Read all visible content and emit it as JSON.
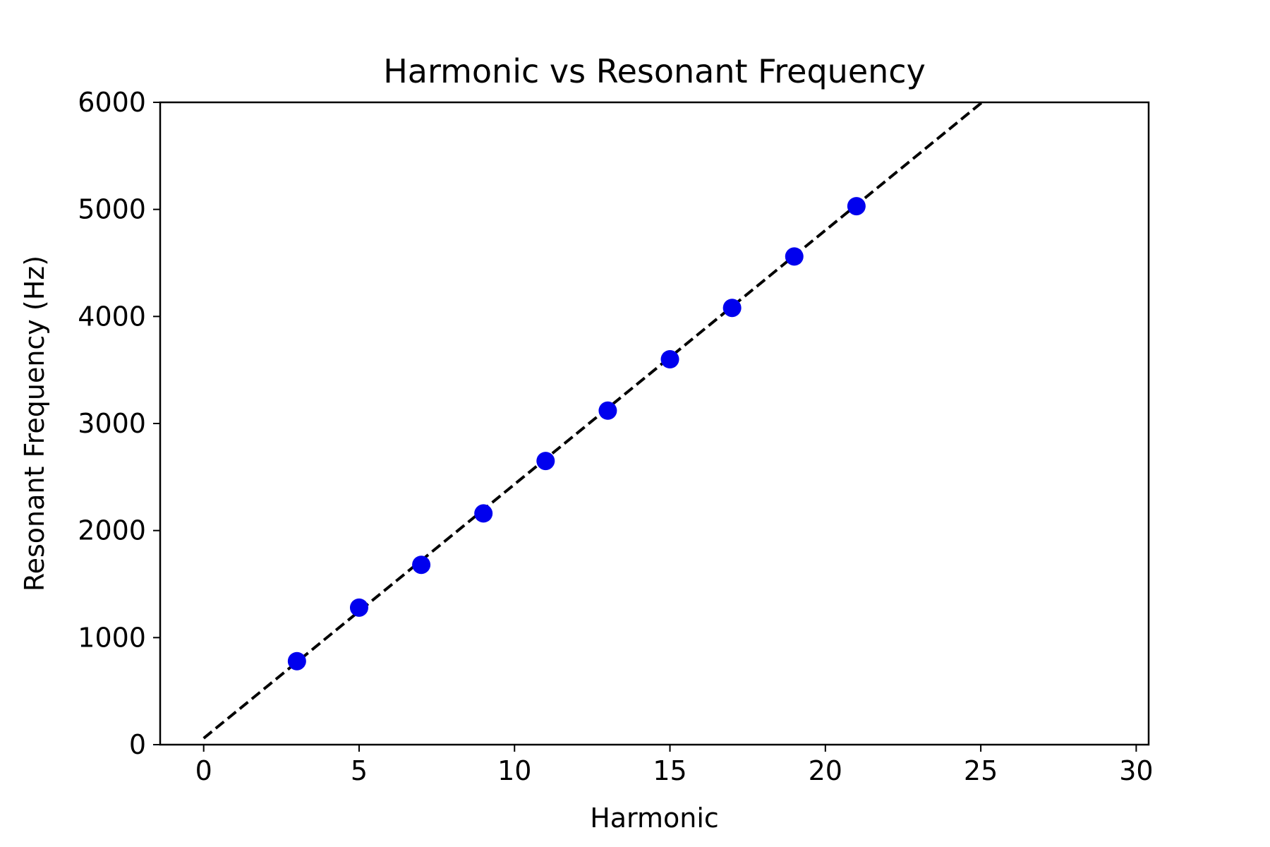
{
  "chart_data": {
    "type": "scatter",
    "title": "Harmonic vs Resonant Frequency",
    "xlabel": "Harmonic",
    "ylabel": "Resonant Frequency (Hz)",
    "xlim": [
      -1.4,
      30.4
    ],
    "ylim": [
      0,
      6000
    ],
    "xticks": [
      0,
      5,
      10,
      15,
      20,
      25,
      30
    ],
    "yticks": [
      0,
      1000,
      2000,
      3000,
      4000,
      5000,
      6000
    ],
    "grid": false,
    "series": [
      {
        "kind": "scatter",
        "color": "#0000ee",
        "x": [
          3,
          5,
          7,
          9,
          11,
          13,
          15,
          17,
          19,
          21
        ],
        "y": [
          780,
          1280,
          1680,
          2160,
          2650,
          3120,
          3600,
          4080,
          4560,
          5030
        ]
      },
      {
        "kind": "fit-line",
        "style": "dashed",
        "color": "#000000",
        "x": [
          0,
          25.04
        ],
        "y": [
          60,
          6000
        ]
      }
    ]
  }
}
